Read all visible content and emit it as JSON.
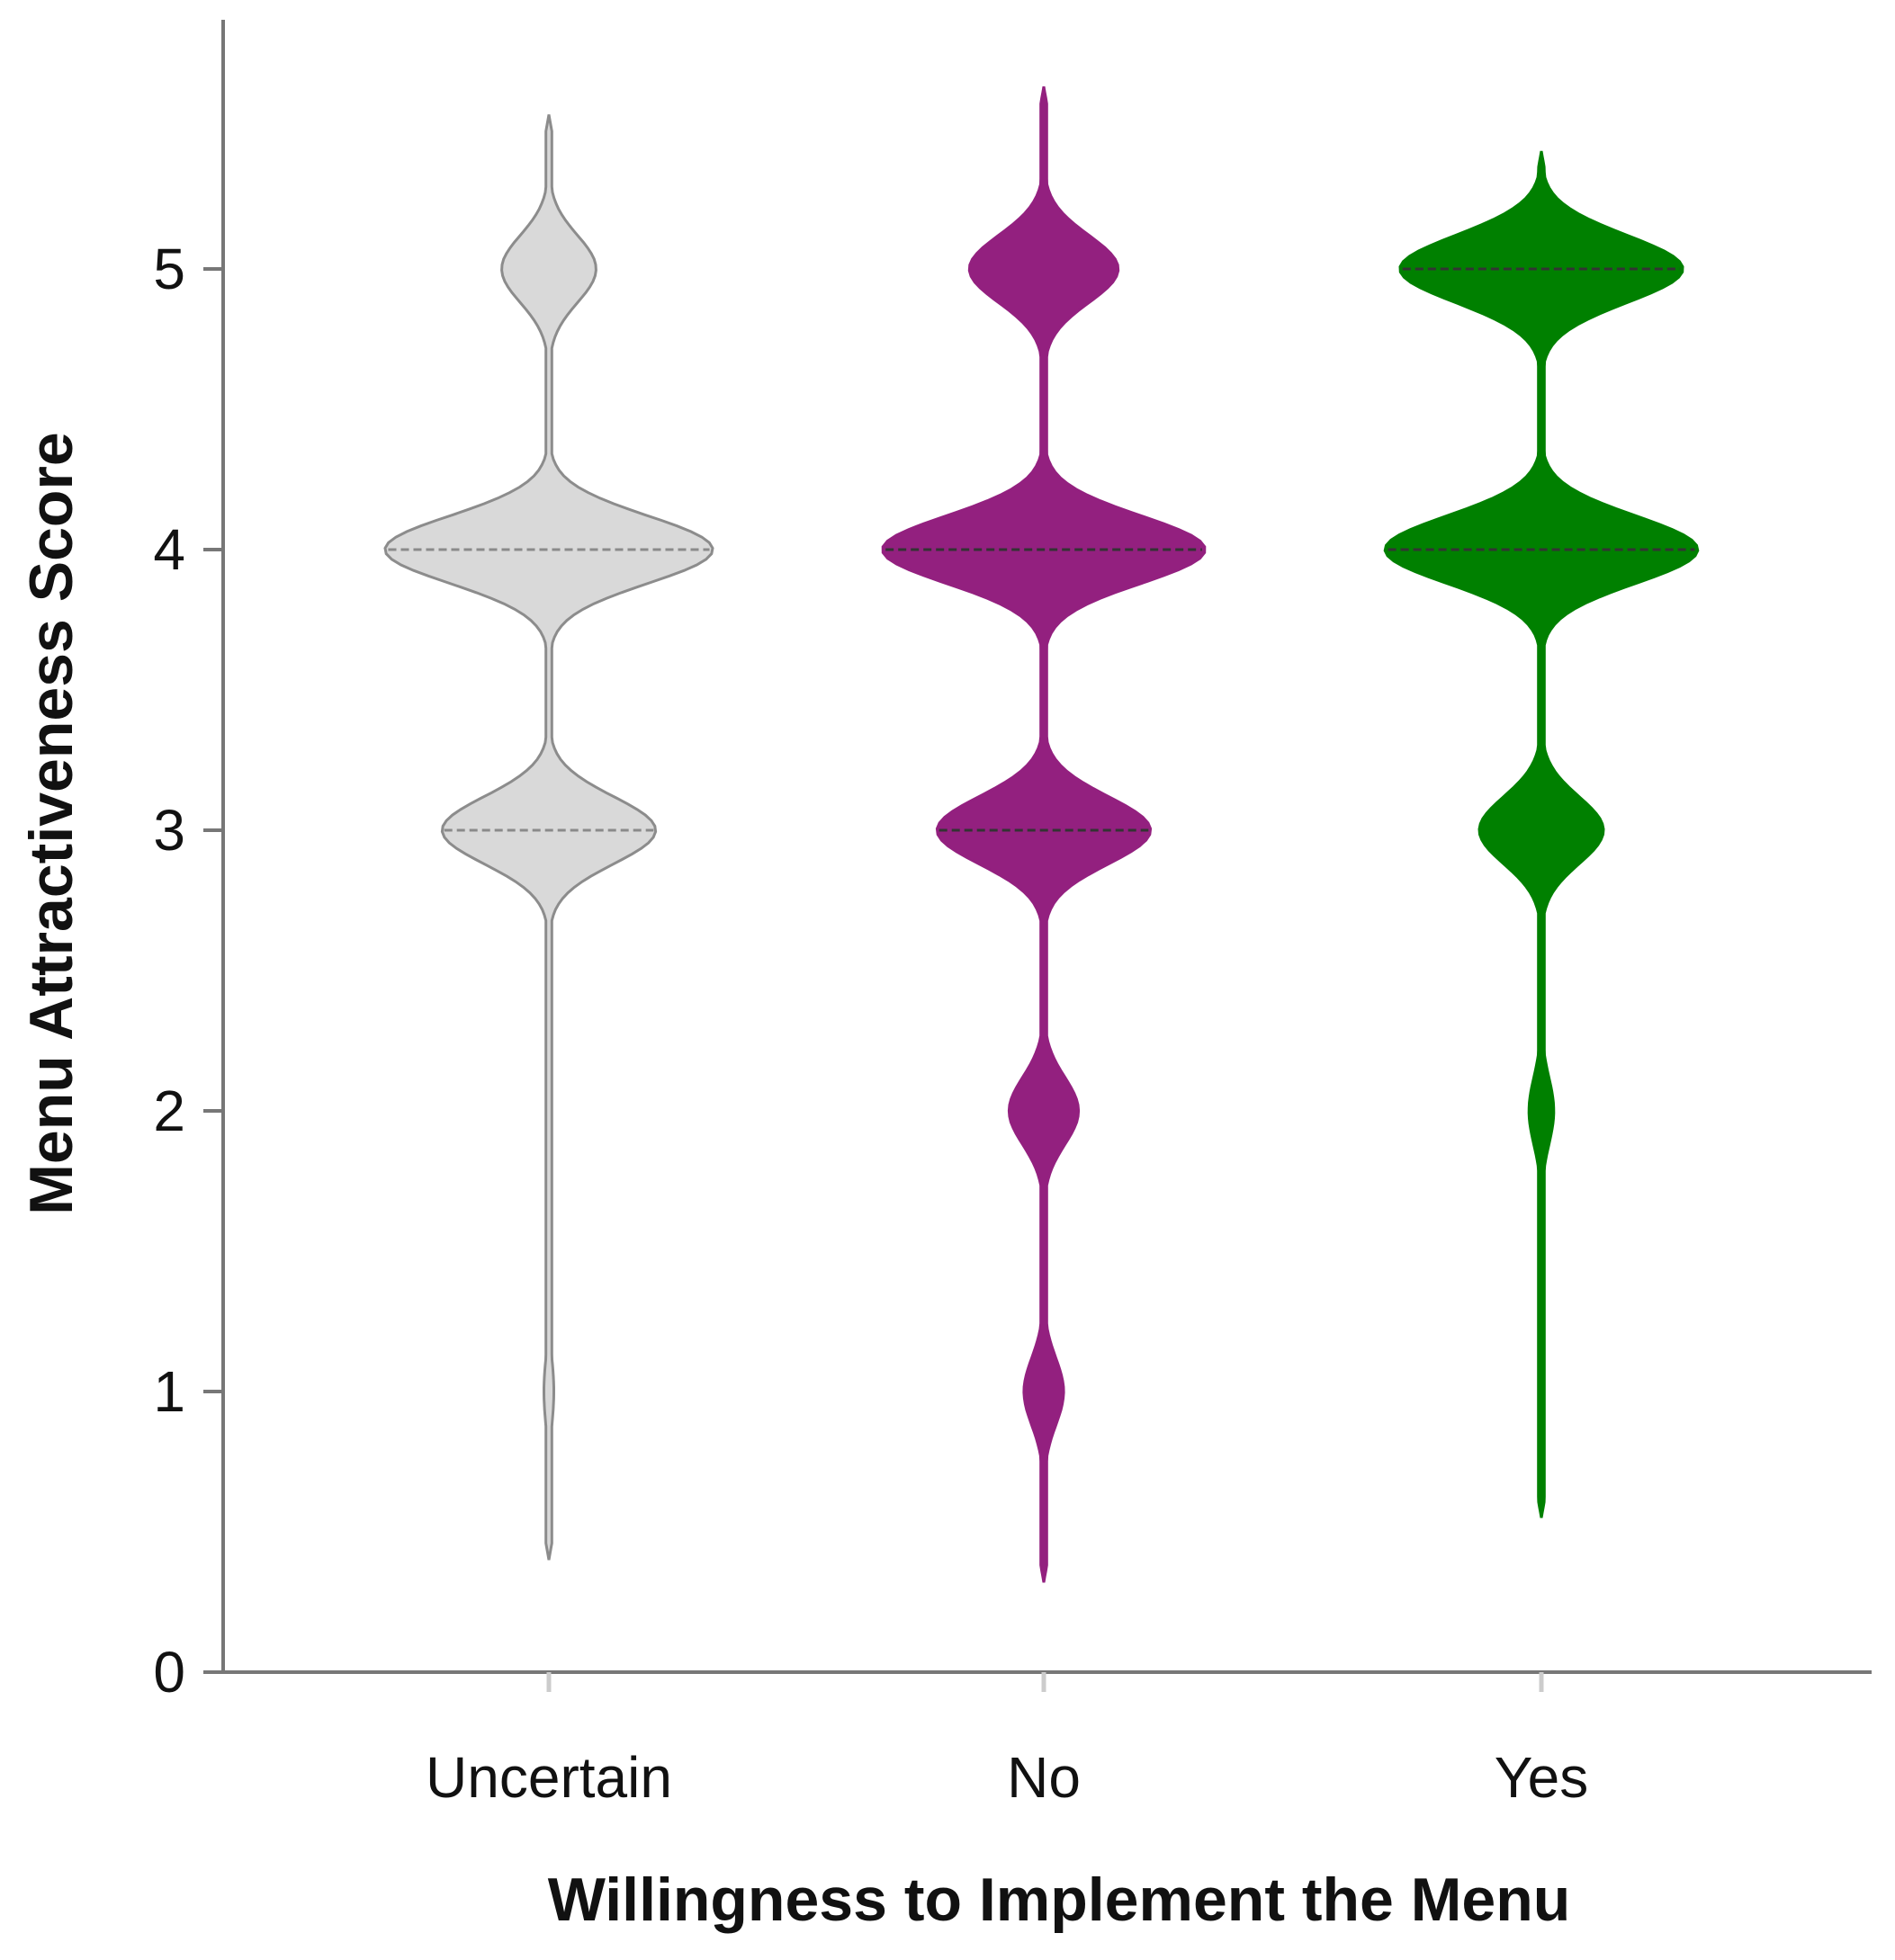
{
  "chart_data": {
    "type": "violin",
    "xlabel": "Willingness to Implement the Menu",
    "ylabel": "Menu Attractiveness Score",
    "categories": [
      "Uncertain",
      "No",
      "Yes"
    ],
    "ylim": [
      0,
      5.8
    ],
    "yticks": [
      0,
      1,
      2,
      3,
      4,
      5
    ],
    "grid": false,
    "series": [
      {
        "category": "Uncertain",
        "color": "#d9d9d9",
        "outline": "#8c8c8c",
        "quartile_lines": [
          3,
          4
        ],
        "y_range": [
          0.4,
          5.55
        ],
        "modes": [
          {
            "score": 5,
            "half_width": 0.19
          },
          {
            "score": 4,
            "half_width": 0.66
          },
          {
            "score": 3,
            "half_width": 0.43
          },
          {
            "score": 1,
            "half_width": 0.02
          }
        ]
      },
      {
        "category": "No",
        "color": "#93207f",
        "outline": "#93207f",
        "quartile_lines": [
          3,
          4
        ],
        "y_range": [
          0.32,
          5.65
        ],
        "modes": [
          {
            "score": 5,
            "half_width": 0.3
          },
          {
            "score": 4,
            "half_width": 0.65
          },
          {
            "score": 3,
            "half_width": 0.43
          },
          {
            "score": 2,
            "half_width": 0.14
          },
          {
            "score": 1,
            "half_width": 0.08
          }
        ]
      },
      {
        "category": "Yes",
        "color": "#008000",
        "outline": "#008000",
        "quartile_lines": [
          4,
          5
        ],
        "y_range": [
          0.55,
          5.42
        ],
        "modes": [
          {
            "score": 5,
            "half_width": 0.57
          },
          {
            "score": 4,
            "half_width": 0.63
          },
          {
            "score": 3,
            "half_width": 0.25
          },
          {
            "score": 2,
            "half_width": 0.05
          },
          {
            "score": 1,
            "half_width": 0.005
          }
        ]
      }
    ]
  }
}
